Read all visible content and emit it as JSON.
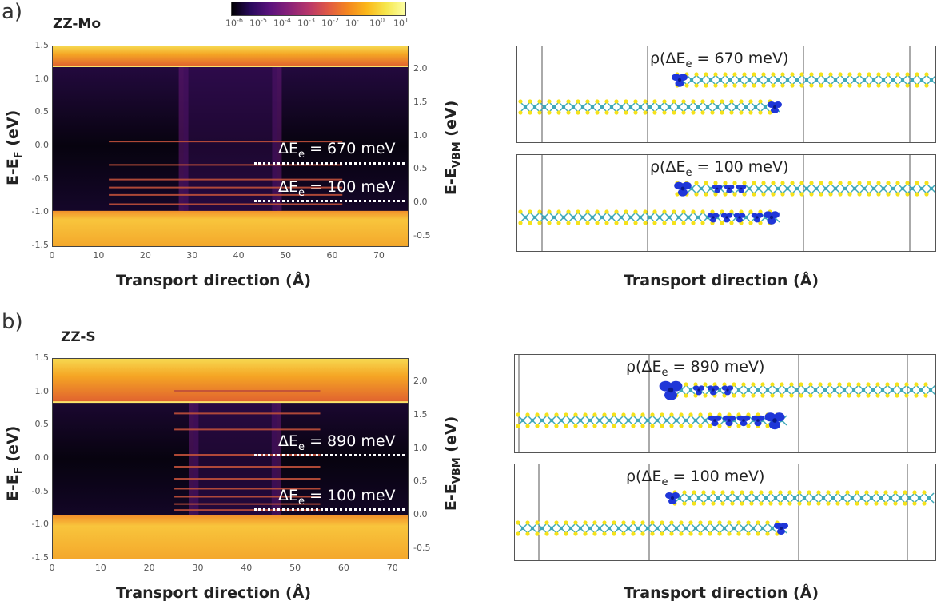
{
  "figure": {
    "colorbar_ticks": [
      "10-6",
      "10-5",
      "10-4",
      "10-3",
      "10-2",
      "10-1",
      "100",
      "101"
    ],
    "colorbar_exponents": [
      "-6",
      "-5",
      "-4",
      "-3",
      "-2",
      "-1",
      "0",
      "1"
    ],
    "colors": {
      "dots": "#ffffff",
      "ion": "#1f36d8",
      "S": "#f5e21a",
      "Mo": "#3fa8b8"
    }
  },
  "chart_data": [
    {
      "panel": "a)",
      "type": "heatmap",
      "title": "ZZ-Mo",
      "xlabel": "Transport direction (Å)",
      "ylabel_left": "E-E_F (eV)",
      "ylabel_right": "E-E_VBM (eV)",
      "xlim": [
        0,
        76
      ],
      "ylim": [
        -1.5,
        1.5
      ],
      "ylim_right": [
        -0.65,
        2.35
      ],
      "xticks": [
        "0",
        "10",
        "20",
        "30",
        "40",
        "50",
        "60",
        "70"
      ],
      "yticks": [
        "-1.5",
        "-1.0",
        "-0.5",
        "0.0",
        "0.5",
        "1.0",
        "1.5"
      ],
      "yticks_right": [
        "-0.5",
        "0.0",
        "0.5",
        "1.0",
        "1.5",
        "2.0"
      ],
      "conduction_band_min": 1.2,
      "valence_band_max": -0.97,
      "resonances": [
        0.07,
        -0.28,
        -0.5,
        -0.62,
        -0.73,
        -0.87
      ],
      "annotations": [
        {
          "label": "ΔE",
          "sub": "e",
          "value": "= 670 meV",
          "energy": -0.28
        },
        {
          "label": "ΔE",
          "sub": "e",
          "value": "= 100 meV",
          "energy": -0.85
        }
      ],
      "structures": [
        {
          "rho": "ρ(ΔE",
          "sub": "e",
          "value": "=  670 meV)"
        },
        {
          "rho": "ρ(ΔE",
          "sub": "e",
          "value": "=  100 meV)"
        }
      ],
      "structures_xlabel": "Transport direction (Å)"
    },
    {
      "panel": "b)",
      "type": "heatmap",
      "title": "ZZ-S",
      "xlabel": "Transport direction (Å)",
      "ylabel_left": "E-E_F (eV)",
      "ylabel_right": "E-E_VBM (eV)",
      "xlim": [
        0,
        73
      ],
      "ylim": [
        -1.5,
        1.5
      ],
      "ylim_right": [
        -0.65,
        2.35
      ],
      "xticks": [
        "0",
        "10",
        "20",
        "30",
        "40",
        "50",
        "60",
        "70"
      ],
      "yticks": [
        "-1.5",
        "-1.0",
        "-0.5",
        "0.0",
        "0.5",
        "1.0",
        "1.5"
      ],
      "yticks_right": [
        "-0.5",
        "0.0",
        "0.5",
        "1.0",
        "1.5",
        "2.0"
      ],
      "conduction_band_min": 0.85,
      "valence_band_max": -0.85,
      "resonances": [
        1.02,
        0.68,
        0.44,
        0.06,
        -0.12,
        -0.3,
        -0.45,
        -0.57,
        -0.68,
        -0.77
      ],
      "annotations": [
        {
          "label": "ΔE",
          "sub": "e",
          "value": "= 890 meV",
          "energy": 0.06
        },
        {
          "label": "ΔE",
          "sub": "e",
          "value": "= 100 meV",
          "energy": -0.77
        }
      ],
      "structures": [
        {
          "rho": "ρ(ΔE",
          "sub": "e",
          "value": "=  890 meV)"
        },
        {
          "rho": "ρ(ΔE",
          "sub": "e",
          "value": "=  100 meV)"
        }
      ],
      "structures_xlabel": "Transport direction (Å)"
    }
  ]
}
